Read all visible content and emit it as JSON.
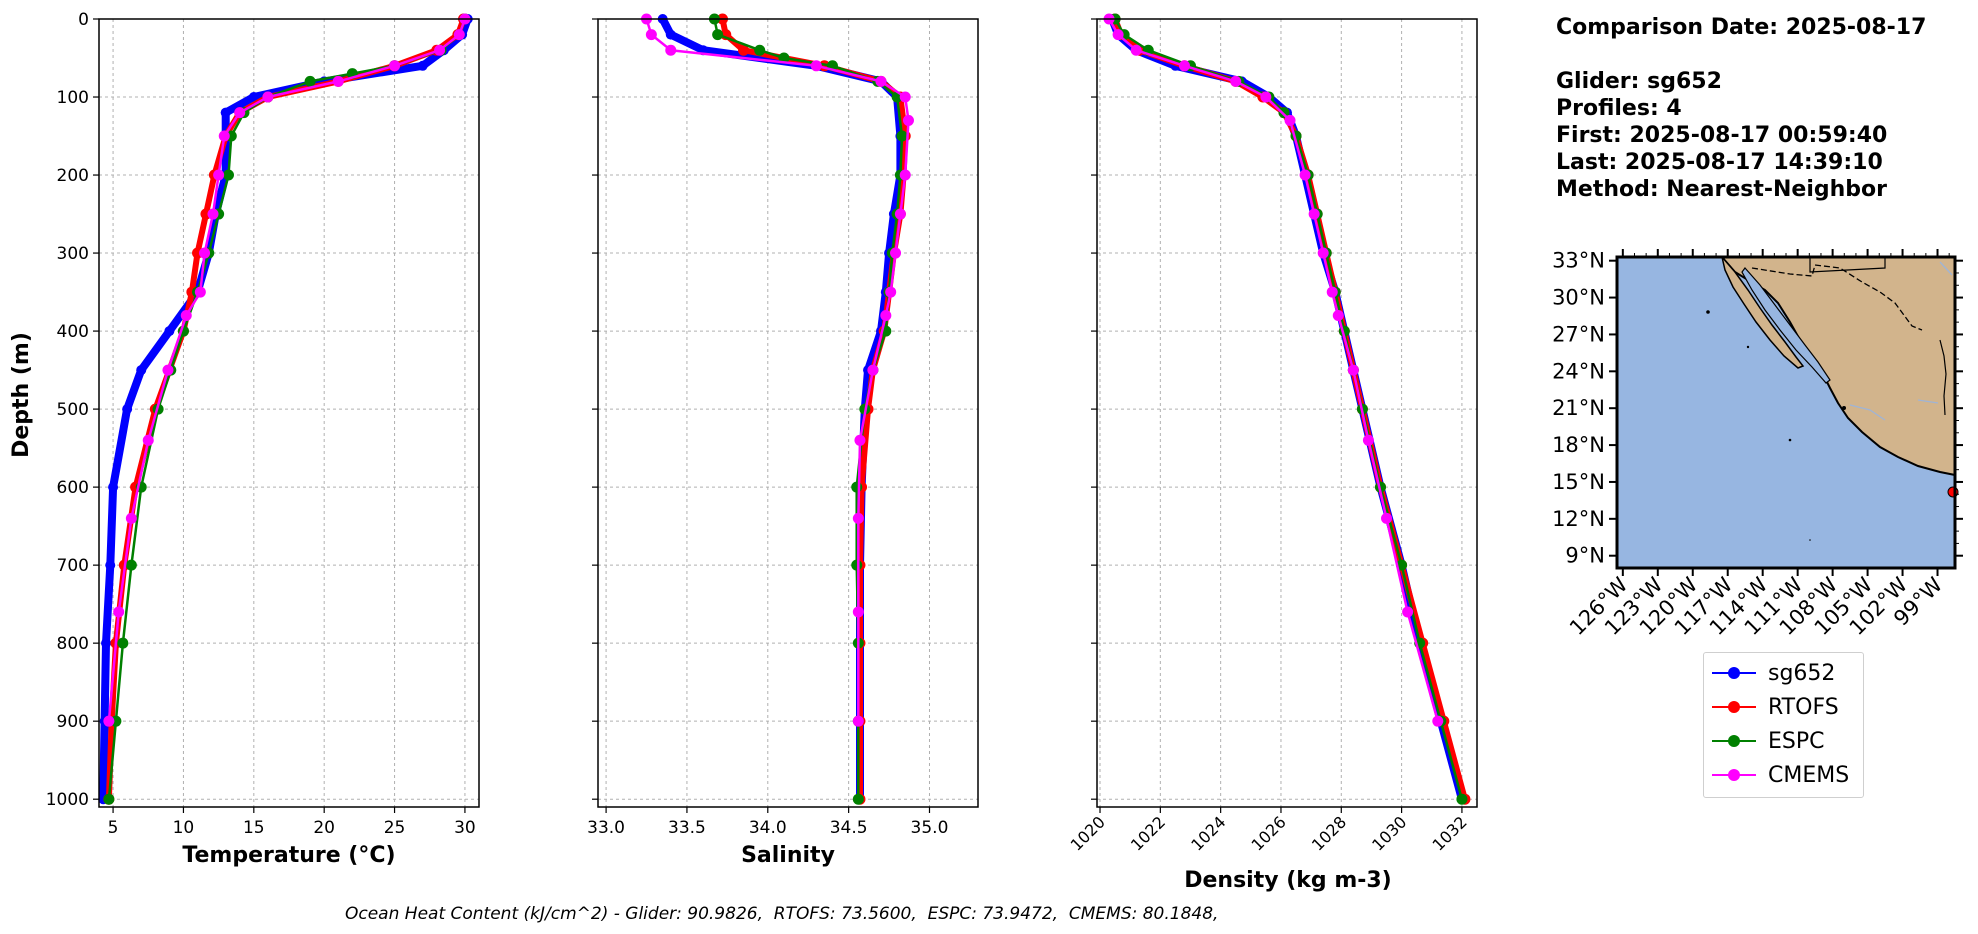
{
  "info": {
    "comparison_date": "Comparison Date: 2025-08-17",
    "glider": "Glider: sg652",
    "profiles": "Profiles: 4",
    "first": "First: 2025-08-17 00:59:40",
    "last": "Last: 2025-08-17 14:39:10",
    "method": "Method: Nearest-Neighbor"
  },
  "footer": "Ocean Heat Content (kJ/cm^2) - Glider: 90.9826,  RTOFS: 73.5600,  ESPC: 73.9472,  CMEMS: 80.1848,",
  "colors": {
    "sg652": "#0000ff",
    "RTOFS": "#ff0000",
    "ESPC": "#008000",
    "CMEMS": "#ff00ff",
    "glider_raw": "#00ffff",
    "ocean": "#97b6e1",
    "land": "#d2b48c"
  },
  "legend": [
    {
      "name": "sg652",
      "color": "#0000ff"
    },
    {
      "name": "RTOFS",
      "color": "#ff0000"
    },
    {
      "name": "ESPC",
      "color": "#008000"
    },
    {
      "name": "CMEMS",
      "color": "#ff00ff"
    }
  ],
  "chart_data": [
    {
      "type": "line",
      "xlabel": "Temperature (°C)",
      "ylabel": "Depth (m)",
      "xlim": [
        4,
        31
      ],
      "ylim": [
        1010,
        0
      ],
      "xticks": [
        5,
        10,
        15,
        20,
        25,
        30
      ],
      "yticks": [
        0,
        100,
        200,
        300,
        400,
        500,
        600,
        700,
        800,
        900,
        1000
      ],
      "grid": true,
      "series": [
        {
          "name": "sg652",
          "depth": [
            0,
            20,
            40,
            60,
            80,
            100,
            120,
            150,
            200,
            250,
            300,
            350,
            400,
            450,
            500,
            600,
            700,
            800,
            900,
            1000
          ],
          "values": [
            30.2,
            29.8,
            28.5,
            27,
            20,
            15,
            13,
            13,
            13,
            12.3,
            11.8,
            11,
            9,
            7,
            6,
            5,
            4.8,
            4.5,
            4.4,
            4.3
          ]
        },
        {
          "name": "RTOFS",
          "depth": [
            0,
            20,
            40,
            60,
            80,
            100,
            120,
            150,
            200,
            250,
            300,
            350,
            400,
            450,
            500,
            600,
            700,
            800,
            900,
            1000
          ],
          "values": [
            29.9,
            29.5,
            28,
            25,
            21,
            16,
            14,
            13,
            12.2,
            11.6,
            11,
            10.6,
            10,
            9,
            8,
            6.6,
            5.8,
            5.2,
            4.9,
            4.7
          ]
        },
        {
          "name": "ESPC",
          "depth": [
            0,
            20,
            40,
            60,
            70,
            80,
            100,
            120,
            150,
            200,
            250,
            300,
            350,
            400,
            450,
            500,
            600,
            700,
            800,
            900,
            1000
          ],
          "values": [
            30,
            29.6,
            28.3,
            25,
            22,
            19,
            16,
            14.3,
            13.4,
            13.2,
            12.5,
            11.8,
            11,
            10,
            9.1,
            8.2,
            7,
            6.3,
            5.7,
            5.2,
            4.7
          ]
        },
        {
          "name": "CMEMS",
          "depth": [
            0,
            20,
            40,
            60,
            80,
            100,
            120,
            150,
            200,
            250,
            300,
            350,
            380,
            450,
            540,
            640,
            760,
            900
          ],
          "values": [
            30,
            29.6,
            28.2,
            25,
            21,
            16,
            14,
            12.9,
            12.5,
            12.1,
            11.5,
            11.2,
            10.2,
            8.9,
            7.5,
            6.3,
            5.4,
            4.7
          ]
        }
      ]
    },
    {
      "type": "line",
      "xlabel": "Salinity",
      "ylabel": "",
      "xlim": [
        32.95,
        35.3
      ],
      "ylim": [
        1010,
        0
      ],
      "xticks": [
        33.0,
        33.5,
        34.0,
        34.5,
        35.0
      ],
      "grid": true,
      "series": [
        {
          "name": "sg652",
          "depth": [
            0,
            20,
            40,
            60,
            80,
            100,
            150,
            200,
            250,
            300,
            350,
            400,
            450,
            500,
            600,
            700,
            800,
            900,
            1000
          ],
          "values": [
            33.35,
            33.4,
            33.6,
            34.3,
            34.7,
            34.8,
            34.82,
            34.82,
            34.78,
            34.75,
            34.73,
            34.7,
            34.62,
            34.6,
            34.58,
            34.57,
            34.57,
            34.57,
            34.57
          ]
        },
        {
          "name": "RTOFS",
          "depth": [
            0,
            20,
            40,
            60,
            80,
            100,
            150,
            200,
            250,
            300,
            350,
            400,
            450,
            500,
            600,
            700,
            800,
            900,
            1000
          ],
          "values": [
            33.72,
            33.74,
            33.85,
            34.35,
            34.7,
            34.82,
            34.85,
            34.84,
            34.82,
            34.78,
            34.75,
            34.72,
            34.65,
            34.62,
            34.58,
            34.57,
            34.57,
            34.57,
            34.57
          ]
        },
        {
          "name": "ESPC",
          "depth": [
            0,
            20,
            40,
            50,
            60,
            80,
            100,
            150,
            200,
            250,
            300,
            350,
            400,
            450,
            500,
            600,
            700,
            800,
            900,
            1000
          ],
          "values": [
            33.67,
            33.69,
            33.95,
            34.1,
            34.4,
            34.68,
            34.8,
            34.83,
            34.82,
            34.8,
            34.77,
            34.75,
            34.73,
            34.65,
            34.6,
            34.55,
            34.55,
            34.56,
            34.56,
            34.56
          ]
        },
        {
          "name": "CMEMS",
          "depth": [
            0,
            20,
            40,
            60,
            80,
            100,
            130,
            200,
            250,
            300,
            350,
            380,
            450,
            540,
            640,
            760,
            900
          ],
          "values": [
            33.25,
            33.28,
            33.4,
            34.3,
            34.7,
            34.85,
            34.87,
            34.85,
            34.82,
            34.79,
            34.76,
            34.73,
            34.65,
            34.57,
            34.56,
            34.56,
            34.56
          ]
        }
      ]
    },
    {
      "type": "line",
      "xlabel": "Density (kg m-3)",
      "ylabel": "",
      "xlim": [
        1019.9,
        1032.5
      ],
      "ylim": [
        1010,
        0
      ],
      "xticks": [
        1020,
        1022,
        1024,
        1026,
        1028,
        1030,
        1032
      ],
      "grid": true,
      "series": [
        {
          "name": "sg652",
          "depth": [
            0,
            20,
            40,
            60,
            80,
            100,
            120,
            150,
            200,
            250,
            300,
            350,
            400,
            450,
            500,
            600,
            700,
            800,
            900,
            1000
          ],
          "values": [
            1020.4,
            1020.6,
            1021.2,
            1022.5,
            1024.7,
            1025.6,
            1026.2,
            1026.5,
            1026.8,
            1027.1,
            1027.4,
            1027.8,
            1028.1,
            1028.4,
            1028.7,
            1029.3,
            1030,
            1030.6,
            1031.3,
            1032
          ]
        },
        {
          "name": "RTOFS",
          "depth": [
            0,
            20,
            40,
            60,
            80,
            100,
            120,
            150,
            200,
            250,
            300,
            350,
            400,
            450,
            500,
            600,
            700,
            800,
            900,
            1000
          ],
          "values": [
            1020.5,
            1020.7,
            1021.3,
            1022.8,
            1024.5,
            1025.4,
            1026.1,
            1026.5,
            1026.9,
            1027.2,
            1027.5,
            1027.8,
            1028.1,
            1028.4,
            1028.7,
            1029.3,
            1030,
            1030.7,
            1031.4,
            1032.1
          ]
        },
        {
          "name": "ESPC",
          "depth": [
            0,
            20,
            40,
            60,
            80,
            100,
            120,
            150,
            200,
            250,
            300,
            350,
            400,
            450,
            500,
            600,
            700,
            800,
            900,
            1000
          ],
          "values": [
            1020.5,
            1020.8,
            1021.6,
            1023,
            1024.6,
            1025.6,
            1026.1,
            1026.5,
            1026.9,
            1027.2,
            1027.5,
            1027.8,
            1028.1,
            1028.4,
            1028.7,
            1029.3,
            1030,
            1030.6,
            1031.3,
            1032
          ]
        },
        {
          "name": "CMEMS",
          "depth": [
            0,
            20,
            40,
            60,
            80,
            100,
            130,
            200,
            250,
            300,
            350,
            380,
            450,
            540,
            640,
            760,
            900
          ],
          "values": [
            1020.3,
            1020.6,
            1021.2,
            1022.8,
            1024.5,
            1025.5,
            1026.3,
            1026.8,
            1027.1,
            1027.4,
            1027.7,
            1027.9,
            1028.4,
            1028.9,
            1029.5,
            1030.2,
            1031.2
          ]
        }
      ]
    },
    {
      "type": "map",
      "lat_ticks": [
        "33°N",
        "30°N",
        "27°N",
        "24°N",
        "21°N",
        "18°N",
        "15°N",
        "12°N",
        "9°N"
      ],
      "lon_ticks": [
        "126°W",
        "123°W",
        "120°W",
        "117°W",
        "114°W",
        "111°W",
        "108°W",
        "105°W",
        "102°W",
        "99°W"
      ],
      "lat_range": [
        8,
        33.3
      ],
      "lon_range": [
        -126.5,
        -97.5
      ],
      "glider_position": {
        "lat": 14.5,
        "lon": -97.7
      }
    }
  ]
}
